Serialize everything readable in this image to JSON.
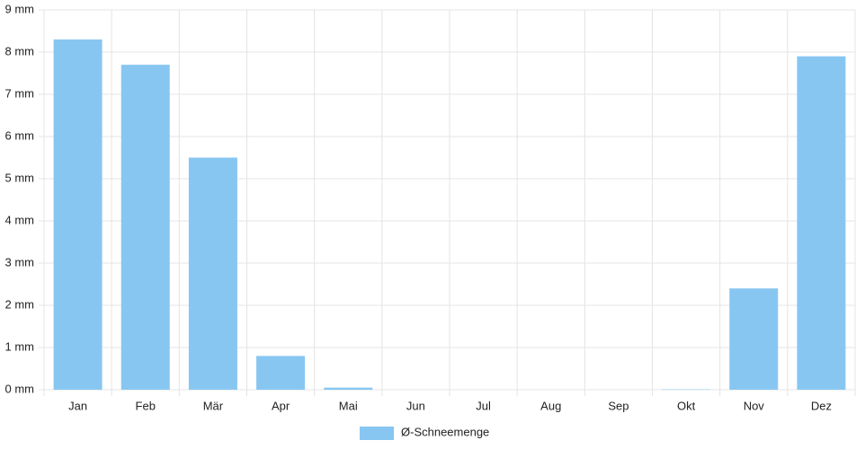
{
  "chart_data": {
    "type": "bar",
    "categories": [
      "Jan",
      "Feb",
      "Mär",
      "Apr",
      "Mai",
      "Jun",
      "Jul",
      "Aug",
      "Sep",
      "Okt",
      "Nov",
      "Dez"
    ],
    "series": [
      {
        "name": "Ø-Schneemenge",
        "color": "#88c6f2",
        "values": [
          8.3,
          7.7,
          5.5,
          0.8,
          0.05,
          0,
          0,
          0,
          0,
          0.01,
          2.4,
          7.9
        ]
      }
    ],
    "ylim": [
      0,
      9
    ],
    "yticks": [
      {
        "value": 0,
        "label": "0 mm"
      },
      {
        "value": 1,
        "label": "1 mm"
      },
      {
        "value": 2,
        "label": "2 mm"
      },
      {
        "value": 3,
        "label": "3 mm"
      },
      {
        "value": 4,
        "label": "4 mm"
      },
      {
        "value": 5,
        "label": "5 mm"
      },
      {
        "value": 6,
        "label": "6 mm"
      },
      {
        "value": 7,
        "label": "7 mm"
      },
      {
        "value": 8,
        "label": "8 mm"
      },
      {
        "value": 9,
        "label": "9 mm"
      }
    ],
    "grid": true,
    "legend": "bottom"
  }
}
